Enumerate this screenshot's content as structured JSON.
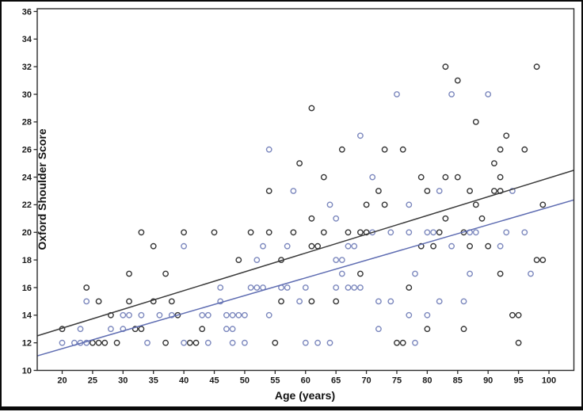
{
  "chart_data": {
    "type": "scatter",
    "title": "",
    "xlabel": "Age (years)",
    "ylabel": "Oxford Shoulder Score",
    "grid": false,
    "legend": "none",
    "x_axis": {
      "ticks": [
        20,
        25,
        30,
        35,
        40,
        45,
        50,
        55,
        60,
        65,
        70,
        75,
        80,
        85,
        90,
        95,
        100
      ],
      "range": [
        15.9,
        104.1
      ]
    },
    "y_axis": {
      "ticks": [
        10,
        12,
        14,
        16,
        18,
        20,
        22,
        24,
        26,
        28,
        30,
        32,
        34,
        36
      ],
      "range": [
        10,
        36.2
      ]
    },
    "marker": {
      "shape": "open-circle",
      "radius": 3.2
    },
    "series": [
      {
        "name": "black-series",
        "color": "#333333",
        "points": [
          [
            20,
            13
          ],
          [
            32,
            13
          ],
          [
            33,
            13
          ],
          [
            43,
            13
          ],
          [
            80,
            13
          ],
          [
            86,
            13
          ],
          [
            24,
            16
          ],
          [
            77,
            16
          ],
          [
            26,
            15
          ],
          [
            31,
            15
          ],
          [
            35,
            15
          ],
          [
            38,
            15
          ],
          [
            56,
            15
          ],
          [
            61,
            15
          ],
          [
            65,
            15
          ],
          [
            28,
            14
          ],
          [
            39,
            14
          ],
          [
            94,
            14
          ],
          [
            95,
            14
          ],
          [
            25,
            12
          ],
          [
            26,
            12
          ],
          [
            27,
            12
          ],
          [
            29,
            12
          ],
          [
            37,
            12
          ],
          [
            41,
            12
          ],
          [
            42,
            12
          ],
          [
            55,
            12
          ],
          [
            75,
            12
          ],
          [
            76,
            12
          ],
          [
            95,
            12
          ],
          [
            31,
            17
          ],
          [
            37,
            17
          ],
          [
            69,
            17
          ],
          [
            92,
            17
          ],
          [
            33,
            20
          ],
          [
            40,
            20
          ],
          [
            45,
            20
          ],
          [
            51,
            20
          ],
          [
            54,
            20
          ],
          [
            58,
            20
          ],
          [
            63,
            20
          ],
          [
            67,
            20
          ],
          [
            69,
            20
          ],
          [
            70,
            20
          ],
          [
            82,
            20
          ],
          [
            86,
            20
          ],
          [
            35,
            19
          ],
          [
            61,
            19
          ],
          [
            62,
            19
          ],
          [
            79,
            19
          ],
          [
            81,
            19
          ],
          [
            87,
            19
          ],
          [
            90,
            19
          ],
          [
            49,
            18
          ],
          [
            56,
            18
          ],
          [
            98,
            18
          ],
          [
            99,
            18
          ],
          [
            54,
            23
          ],
          [
            72,
            23
          ],
          [
            80,
            23
          ],
          [
            87,
            23
          ],
          [
            91,
            23
          ],
          [
            92,
            23
          ],
          [
            61,
            21
          ],
          [
            83,
            21
          ],
          [
            89,
            21
          ],
          [
            63,
            24
          ],
          [
            79,
            24
          ],
          [
            83,
            24
          ],
          [
            85,
            24
          ],
          [
            92,
            24
          ],
          [
            59,
            25
          ],
          [
            91,
            25
          ],
          [
            66,
            26
          ],
          [
            73,
            26
          ],
          [
            76,
            26
          ],
          [
            92,
            26
          ],
          [
            96,
            26
          ],
          [
            70,
            22
          ],
          [
            73,
            22
          ],
          [
            88,
            22
          ],
          [
            99,
            22
          ],
          [
            61,
            29
          ],
          [
            88,
            28
          ],
          [
            93,
            27
          ],
          [
            83,
            32
          ],
          [
            98,
            32
          ],
          [
            85,
            31
          ]
        ]
      },
      {
        "name": "blue-series",
        "color": "#7b87bd",
        "points": [
          [
            24,
            15
          ],
          [
            46,
            15
          ],
          [
            59,
            15
          ],
          [
            72,
            15
          ],
          [
            74,
            15
          ],
          [
            82,
            15
          ],
          [
            86,
            15
          ],
          [
            46,
            16
          ],
          [
            51,
            16
          ],
          [
            52,
            16
          ],
          [
            53,
            16
          ],
          [
            56,
            16
          ],
          [
            57,
            16
          ],
          [
            60,
            16
          ],
          [
            65,
            16
          ],
          [
            67,
            16
          ],
          [
            68,
            16
          ],
          [
            69,
            16
          ],
          [
            30,
            14
          ],
          [
            31,
            14
          ],
          [
            33,
            14
          ],
          [
            36,
            14
          ],
          [
            38,
            14
          ],
          [
            43,
            14
          ],
          [
            44,
            14
          ],
          [
            47,
            14
          ],
          [
            48,
            14
          ],
          [
            49,
            14
          ],
          [
            50,
            14
          ],
          [
            54,
            14
          ],
          [
            77,
            14
          ],
          [
            80,
            14
          ],
          [
            23,
            13
          ],
          [
            28,
            13
          ],
          [
            30,
            13
          ],
          [
            47,
            13
          ],
          [
            48,
            13
          ],
          [
            72,
            13
          ],
          [
            20,
            12
          ],
          [
            22,
            12
          ],
          [
            23,
            12
          ],
          [
            24,
            12
          ],
          [
            34,
            12
          ],
          [
            40,
            12
          ],
          [
            44,
            12
          ],
          [
            48,
            12
          ],
          [
            50,
            12
          ],
          [
            60,
            12
          ],
          [
            62,
            12
          ],
          [
            64,
            12
          ],
          [
            78,
            12
          ],
          [
            66,
            17
          ],
          [
            78,
            17
          ],
          [
            87,
            17
          ],
          [
            97,
            17
          ],
          [
            52,
            18
          ],
          [
            65,
            18
          ],
          [
            66,
            18
          ],
          [
            40,
            19
          ],
          [
            53,
            19
          ],
          [
            57,
            19
          ],
          [
            67,
            19
          ],
          [
            68,
            19
          ],
          [
            84,
            19
          ],
          [
            92,
            19
          ],
          [
            71,
            20
          ],
          [
            74,
            20
          ],
          [
            77,
            20
          ],
          [
            80,
            20
          ],
          [
            81,
            20
          ],
          [
            87,
            20
          ],
          [
            88,
            20
          ],
          [
            93,
            20
          ],
          [
            96,
            20
          ],
          [
            65,
            21
          ],
          [
            64,
            22
          ],
          [
            77,
            22
          ],
          [
            58,
            23
          ],
          [
            82,
            23
          ],
          [
            94,
            23
          ],
          [
            71,
            24
          ],
          [
            54,
            26
          ],
          [
            69,
            27
          ],
          [
            75,
            30
          ],
          [
            84,
            30
          ],
          [
            90,
            30
          ]
        ]
      }
    ],
    "fit_lines": [
      {
        "name": "black-fit-line",
        "color": "#3b3b3b",
        "x": [
          15.9,
          104.1
        ],
        "y": [
          12.5,
          24.5
        ]
      },
      {
        "name": "blue-fit-line",
        "color": "#5f6db2",
        "x": [
          15.9,
          104.1
        ],
        "y": [
          11.05,
          22.35
        ]
      }
    ]
  }
}
